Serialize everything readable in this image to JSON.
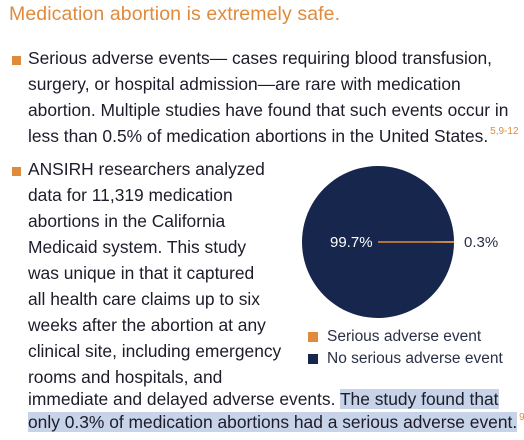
{
  "title": "Medication abortion is extremely safe.",
  "bullet1": {
    "lines": [
      "Serious adverse events— cases requiring blood transfusion,",
      "surgery, or hospital admission—are rare with medication",
      "abortion. Multiple studies have found that such events occur in",
      "less than 0.5% of medication abortions in the United States."
    ],
    "ref": "5,9-12"
  },
  "bullet2": {
    "lines": [
      "ANSIRH researchers analyzed",
      "data for 11,319 medication",
      "abortions in the California",
      "Medicaid system. This study",
      "was unique in that it captured",
      "all health care claims up to six",
      "weeks after the abortion at any",
      "clinical site, including emergency",
      "rooms and hospitals, and"
    ],
    "line10_plain": "immediate and delayed adverse events. ",
    "line10_highlight": "The study found that",
    "line11_highlight": "only 0.3% of medication abortions had a serious adverse event.",
    "ref": "9"
  },
  "colors": {
    "accent": "#e08a3c",
    "navy": "#17264d",
    "highlight": "#c7d3e8"
  },
  "chart_data": {
    "type": "pie",
    "slices": [
      {
        "label": "Serious adverse event",
        "value": 0.3,
        "display": "0.3%",
        "color": "#e08a3c"
      },
      {
        "label": "No serious adverse event",
        "value": 99.7,
        "display": "99.7%",
        "color": "#17264d"
      }
    ],
    "legend_position": "bottom-right"
  }
}
